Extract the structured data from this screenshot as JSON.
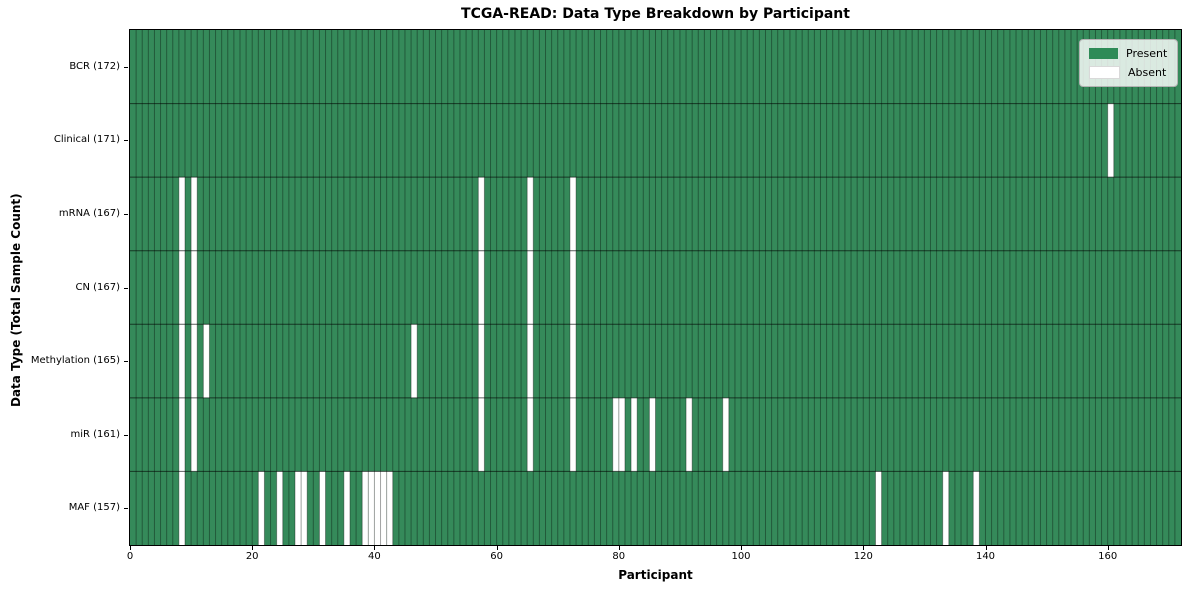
{
  "chart_data": {
    "type": "heatmap",
    "title": "TCGA-READ: Data Type Breakdown by Participant",
    "xlabel": "Participant",
    "ylabel": "Data Type (Total Sample Count)",
    "xlim": [
      0,
      172
    ],
    "x_ticks": [
      0,
      20,
      40,
      60,
      80,
      100,
      120,
      140,
      160
    ],
    "grid": true,
    "legend_position": "upper right",
    "legend": [
      "Present",
      "Absent"
    ],
    "rows": [
      {
        "label": "BCR (172)",
        "data_type": "BCR",
        "total_sample_count": 172,
        "absent_participants": []
      },
      {
        "label": "Clinical (171)",
        "data_type": "Clinical",
        "total_sample_count": 171,
        "absent_participants": [
          160
        ]
      },
      {
        "label": "mRNA (167)",
        "data_type": "mRNA",
        "total_sample_count": 167,
        "absent_participants": [
          8,
          10,
          57,
          65,
          72
        ]
      },
      {
        "label": "CN (167)",
        "data_type": "CN",
        "total_sample_count": 167,
        "absent_participants": [
          8,
          10,
          57,
          65,
          72
        ]
      },
      {
        "label": "Methylation (165)",
        "data_type": "Methylation",
        "total_sample_count": 165,
        "absent_participants": [
          8,
          10,
          12,
          46,
          57,
          65,
          72
        ]
      },
      {
        "label": "miR (161)",
        "data_type": "miR",
        "total_sample_count": 161,
        "absent_participants": [
          8,
          10,
          57,
          65,
          72,
          79,
          80,
          82,
          85,
          91,
          97
        ]
      },
      {
        "label": "MAF (157)",
        "data_type": "MAF",
        "total_sample_count": 157,
        "absent_participants": [
          8,
          21,
          24,
          27,
          28,
          31,
          35,
          38,
          39,
          40,
          41,
          42,
          122,
          133,
          138
        ]
      }
    ],
    "colors": {
      "present": "#358a5a",
      "absent": "#ffffff",
      "legend_present_swatch": "#2e8b57",
      "grid_vertical": "rgba(0,0,0,0.35)",
      "grid_horizontal": "rgba(0,0,0,0.6)",
      "plot_border": "#000000"
    }
  }
}
